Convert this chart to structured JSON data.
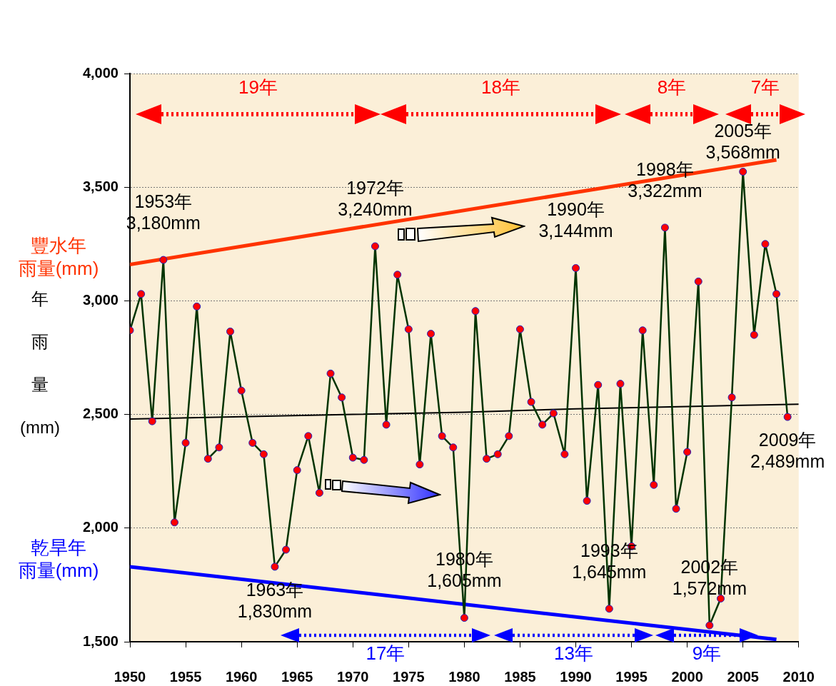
{
  "chart_data": {
    "type": "line",
    "ylabel": "年雨量(mm)",
    "xlim": [
      1950,
      2010
    ],
    "xticks": [
      1950,
      1955,
      1960,
      1965,
      1970,
      1975,
      1980,
      1985,
      1990,
      1995,
      2000,
      2005,
      2010
    ],
    "ylim": [
      1500,
      4000
    ],
    "yticks": [
      {
        "value": 1500,
        "label": "1,500"
      },
      {
        "value": 2000,
        "label": "2,000"
      },
      {
        "value": 2500,
        "label": "2,500"
      },
      {
        "value": 3000,
        "label": "3,000"
      },
      {
        "value": 3500,
        "label": "3,500"
      },
      {
        "value": 4000,
        "label": "4,000"
      }
    ],
    "grid": "y",
    "legend": false,
    "marker": "circle",
    "line_style": "solid",
    "x": [
      1950,
      1951,
      1952,
      1953,
      1954,
      1955,
      1956,
      1957,
      1958,
      1959,
      1960,
      1961,
      1962,
      1963,
      1964,
      1965,
      1966,
      1967,
      1968,
      1969,
      1970,
      1971,
      1972,
      1973,
      1974,
      1975,
      1976,
      1977,
      1978,
      1979,
      1980,
      1981,
      1982,
      1983,
      1984,
      1985,
      1986,
      1987,
      1988,
      1989,
      1990,
      1991,
      1992,
      1993,
      1994,
      1995,
      1996,
      1997,
      1998,
      1999,
      2000,
      2001,
      2002,
      2003,
      2004,
      2005,
      2006,
      2007,
      2008,
      2009
    ],
    "series": [
      {
        "color": "#003300",
        "values": [
          2870,
          3030,
          2470,
          3180,
          2025,
          2375,
          2975,
          2305,
          2355,
          2865,
          2605,
          2375,
          2325,
          1830,
          1905,
          2255,
          2405,
          2155,
          2680,
          2575,
          2310,
          2300,
          3240,
          2455,
          3115,
          2875,
          2280,
          2855,
          2405,
          2355,
          1605,
          2955,
          2305,
          2325,
          2405,
          2875,
          2555,
          2455,
          2505,
          2325,
          3144,
          2120,
          2630,
          1645,
          2635,
          1920,
          2870,
          2190,
          3322,
          2085,
          2335,
          3085,
          1572,
          1690,
          2575,
          3568,
          2850,
          3250,
          3030,
          2489
        ]
      },
      {
        "type": "line",
        "marker": "none",
        "color": "#000000",
        "x": [
          1950,
          1960,
          1970,
          1980,
          1990,
          2000,
          2010
        ],
        "values": [
          2480,
          2490,
          2500,
          2510,
          2525,
          2535,
          2545
        ]
      },
      {
        "type": "line",
        "marker": "none",
        "name": "豐水年雨量(mm)",
        "color": "#ff3300",
        "x": [
          1950,
          2008
        ],
        "values": [
          3160,
          3620
        ]
      },
      {
        "type": "line",
        "marker": "none",
        "name": "乾旱年雨量(mm)",
        "color": "#0000ff",
        "x": [
          1950,
          2008
        ],
        "values": [
          1830,
          1510
        ]
      }
    ],
    "annotations": [
      {
        "text": "1953年\n3,180mm",
        "x": 1953,
        "y": 3180
      },
      {
        "text": "1972年\n3,240mm",
        "x": 1972,
        "y": 3240
      },
      {
        "text": "1990年\n3,144mm",
        "x": 1990,
        "y": 3144
      },
      {
        "text": "1998年\n3,322mm",
        "x": 1998,
        "y": 3322
      },
      {
        "text": "2005年\n3,568mm",
        "x": 2005,
        "y": 3568
      },
      {
        "text": "1963年\n1,830mm",
        "x": 1963,
        "y": 1830
      },
      {
        "text": "1980年\n1,605mm",
        "x": 1980,
        "y": 1605
      },
      {
        "text": "1993年\n1,645mm",
        "x": 1993,
        "y": 1645
      },
      {
        "text": "2002年\n1,572mm",
        "x": 2002,
        "y": 1572
      },
      {
        "text": "2009年\n2,489mm",
        "x": 2009,
        "y": 2489
      },
      "19年",
      "18年",
      "8年",
      "7年",
      "17年",
      "13年",
      "9年"
    ]
  }
}
